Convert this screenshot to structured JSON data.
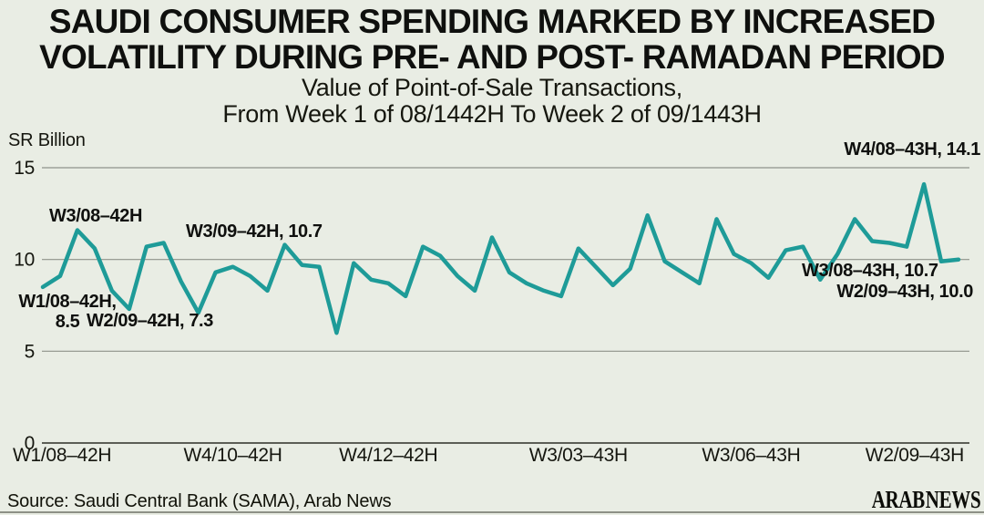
{
  "page": {
    "background_color": "#E9EDE4",
    "ink_color": "#121310"
  },
  "header": {
    "title_line1": "SAUDI CONSUMER SPENDING MARKED BY INCREASED",
    "title_line2": "VOLATILITY DURING PRE- AND POST- RAMADAN PERIOD",
    "subtitle_line1": "Value of Point-of-Sale Transactions,",
    "subtitle_line2": "From Week 1 of 08/1442H To Week 2 of 09/1443H"
  },
  "chart_data": {
    "type": "line",
    "title": "SAUDI CONSUMER SPENDING MARKED BY INCREASED VOLATILITY DURING PRE- AND POST- RAMADAN PERIOD",
    "subtitle": "Value of Point-of-Sale Transactions, From Week 1 of 08/1442H To Week 2 of 09/1443H",
    "ylabel": "SR Billion",
    "xlabel": "",
    "ylim": [
      0,
      15
    ],
    "yticks": [
      0,
      5,
      10,
      15
    ],
    "grid": true,
    "legend": false,
    "line_color": "#1E9B98",
    "grid_color": "#8f928a",
    "zero_line_color": "#5c5e56",
    "x_unit": "week (Hijri calendar, W#/month-year)",
    "x_count": 54,
    "x_tick_indices": [
      0,
      11,
      20,
      31,
      41,
      53
    ],
    "x_tick_labels": [
      "W1/08–42H",
      "W4/10–42H",
      "W4/12–42H",
      "W3/03–43H",
      "W3/06–43H",
      "W2/09–43H"
    ],
    "values": [
      8.5,
      9.1,
      11.6,
      10.6,
      8.3,
      7.3,
      10.7,
      10.9,
      8.8,
      7.1,
      9.3,
      9.6,
      9.1,
      8.3,
      10.8,
      9.7,
      9.6,
      6.0,
      9.8,
      8.9,
      8.7,
      8.0,
      10.7,
      10.2,
      9.1,
      8.3,
      11.2,
      9.3,
      8.7,
      8.3,
      8.0,
      10.6,
      9.6,
      8.6,
      9.5,
      12.4,
      9.9,
      9.3,
      8.7,
      12.2,
      10.3,
      9.8,
      9.0,
      10.5,
      10.7,
      8.9,
      10.3,
      12.2,
      11.0,
      10.9,
      10.7,
      14.1,
      9.9,
      10.0
    ],
    "annotations": [
      {
        "text": "W3/08–42H",
        "index": 2
      },
      {
        "text": "W1/08–42H,",
        "text2": "8.5",
        "index": 0,
        "value": 8.5
      },
      {
        "text": "W2/09–42H, 7.3",
        "index": 5,
        "value": 7.3
      },
      {
        "text": "W3/09–42H, 10.7",
        "index": 6,
        "value": 10.7
      },
      {
        "text": "W4/08–43H, 14.1",
        "index": 51,
        "value": 14.1
      },
      {
        "text": "W3/08–43H, 10.7",
        "index": 50,
        "value": 10.7
      },
      {
        "text": "W2/09–43H, 10.0",
        "index": 53,
        "value": 10.0
      }
    ]
  },
  "footer": {
    "source": "Source: Saudi Central Bank (SAMA), Arab News",
    "logo": "ARAB NEWS"
  }
}
